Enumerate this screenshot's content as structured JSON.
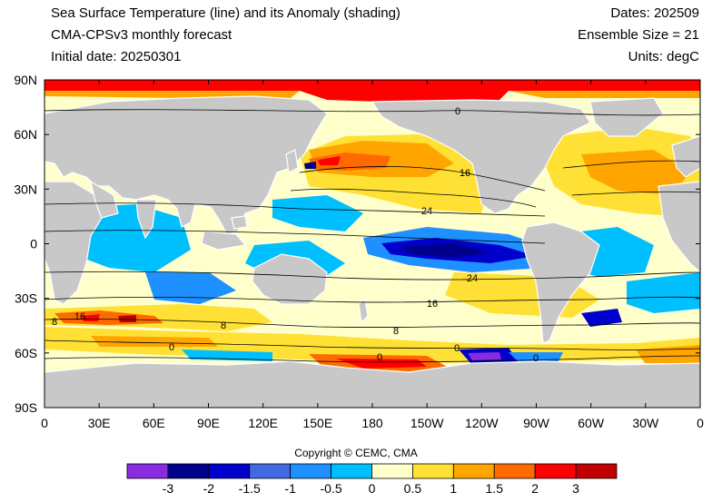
{
  "header": {
    "title_line1": "Sea Surface Temperature (line) and its Anomaly (shading)",
    "title_line2": "CMA-CPSv3 monthly forecast",
    "title_line3": "Initial date: 20250301",
    "dates": "Dates: 202509",
    "ensemble": "Ensemble Size = 21",
    "units": "Units: degC"
  },
  "axes": {
    "lat_labels": [
      "90N",
      "60N",
      "30N",
      "0",
      "30S",
      "60S",
      "90S"
    ],
    "lon_labels": [
      "0",
      "30E",
      "60E",
      "90E",
      "120E",
      "150E",
      "180",
      "150W",
      "120W",
      "90W",
      "60W",
      "30W",
      "0"
    ]
  },
  "contour_labels": [
    "0",
    "16",
    "24",
    "24",
    "16",
    "8",
    "16",
    "8",
    "0",
    "0",
    "0",
    "0",
    "8"
  ],
  "copyright": "Copyright © CEMC, CMA",
  "colorbar": {
    "colors": [
      "#8a2be2",
      "#00008b",
      "#0000cd",
      "#4169e1",
      "#1e90ff",
      "#00bfff",
      "#ffffcc",
      "#ffe135",
      "#ffa500",
      "#ff6a00",
      "#ff0000",
      "#c00000"
    ],
    "labels": [
      "-3",
      "-2",
      "-1.5",
      "-1",
      "-0.5",
      "0",
      "0.5",
      "1",
      "1.5",
      "2",
      "3"
    ]
  },
  "colors": {
    "land": "#c8c8c8",
    "ocean_neutral": "#ffffcc"
  }
}
